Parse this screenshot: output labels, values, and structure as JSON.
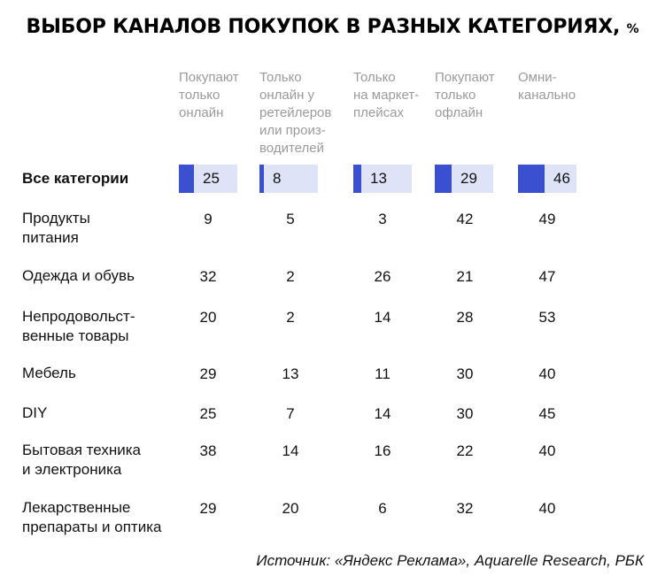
{
  "chart_data": {
    "type": "table",
    "title": "ВЫБОР КАНАЛОВ ПОКУПОК В РАЗНЫХ КАТЕГОРИЯХ,",
    "unit": "%",
    "columns": [
      "Покупают\nтолько\nонлайн",
      "Только\nонлайн у\nретейлеров\nили произ-\nводителей",
      "Только\nна маркет-\nплейсах",
      "Покупают\nтолько\nофлайн",
      "Омни-\nканально"
    ],
    "rows": [
      {
        "label": "Все категории",
        "values": [
          25,
          8,
          13,
          29,
          46
        ],
        "highlight": true
      },
      {
        "label": "Продукты\nпитания",
        "values": [
          9,
          5,
          3,
          42,
          49
        ]
      },
      {
        "label": "Одежда и обувь",
        "values": [
          32,
          2,
          26,
          21,
          47
        ]
      },
      {
        "label": "Непродовольст-\nвенные товары",
        "values": [
          20,
          2,
          14,
          28,
          53
        ]
      },
      {
        "label": "Мебель",
        "values": [
          29,
          13,
          11,
          30,
          40
        ]
      },
      {
        "label": "DIY",
        "values": [
          25,
          7,
          14,
          30,
          45
        ]
      },
      {
        "label": "Бытовая техника\nи электроника",
        "values": [
          38,
          14,
          16,
          22,
          40
        ]
      },
      {
        "label": "Лекарственные\nпрепараты и оптика",
        "values": [
          29,
          20,
          6,
          32,
          40
        ]
      }
    ],
    "bar_color": "#3b4fd1",
    "bar_track_color": "#dfe3f7"
  },
  "source": "Источник: «Яндекс Реклама», Aquarelle Research, РБК"
}
